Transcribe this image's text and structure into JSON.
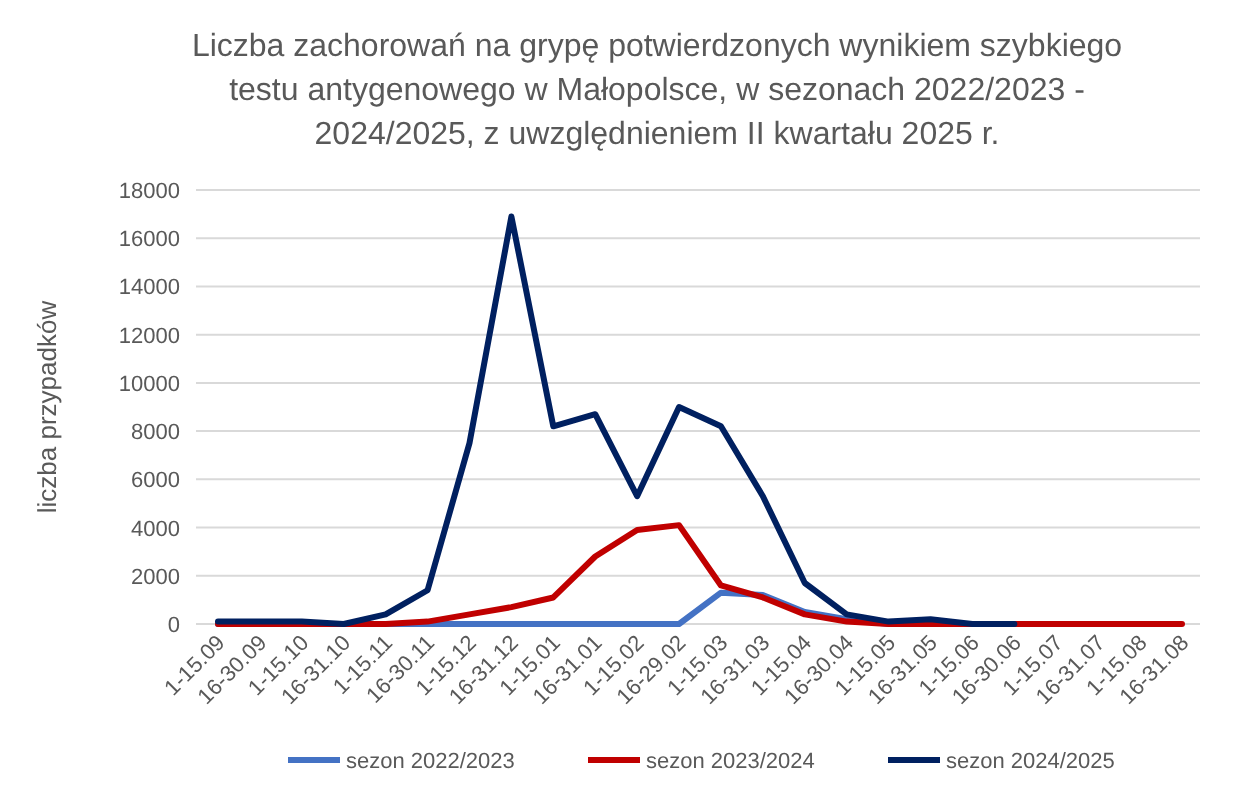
{
  "chart_data": {
    "type": "line",
    "title": "Liczba zachorowań na grypę potwierdzonych wynikiem szybkiego testu antygenowego w Małopolsce, w sezonach 2022/2023 - 2024/2025, z uwzględnieniem II kwartału 2025 r.",
    "ylabel": "liczba przypadków",
    "categories": [
      "1-15.09",
      "16-30.09",
      "1-15.10",
      "16-31.10",
      "1-15.11",
      "16-30.11",
      "1-15.12",
      "16-31.12",
      "1-15.01",
      "16-31.01",
      "1-15.02",
      "16-29.02",
      "1-15.03",
      "16-31.03",
      "1-15.04",
      "16-30.04",
      "1-15.05",
      "16-31.05",
      "1-15.06",
      "16-30.06",
      "1-15.07",
      "16-31.07",
      "1-15.08",
      "16-31.08"
    ],
    "series": [
      {
        "name": "sezon 2022/2023",
        "color": "#4472c4",
        "values": [
          0,
          0,
          0,
          0,
          0,
          0,
          0,
          0,
          0,
          0,
          0,
          0,
          1300,
          1200,
          500,
          200,
          0,
          0,
          0,
          0,
          null,
          null,
          null,
          null
        ]
      },
      {
        "name": "sezon 2023/2024",
        "color": "#c00000",
        "values": [
          0,
          0,
          0,
          0,
          0,
          100,
          400,
          700,
          1100,
          2800,
          3900,
          4100,
          1600,
          1100,
          400,
          100,
          0,
          0,
          0,
          0,
          0,
          0,
          0,
          0
        ]
      },
      {
        "name": "sezon 2024/2025",
        "color": "#002060",
        "values": [
          100,
          100,
          100,
          0,
          400,
          1400,
          7500,
          16900,
          8200,
          8700,
          5300,
          9000,
          8200,
          5300,
          1700,
          400,
          100,
          200,
          0,
          0,
          null,
          null,
          null,
          null
        ]
      }
    ],
    "ylim": [
      0,
      18000
    ],
    "yticks": [
      0,
      2000,
      4000,
      6000,
      8000,
      10000,
      12000,
      14000,
      16000,
      18000
    ],
    "grid": "y",
    "legend": "bottom",
    "line_style": "solid",
    "marker": "none"
  }
}
